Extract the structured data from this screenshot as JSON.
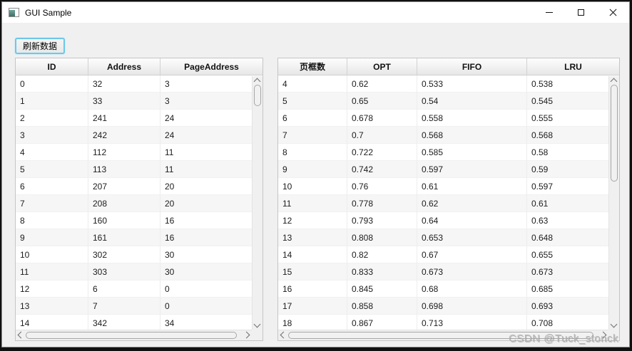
{
  "window": {
    "title": "GUI Sample"
  },
  "toolbar": {
    "refresh_label": "刷新数据"
  },
  "left_table": {
    "columns": [
      "ID",
      "Address",
      "PageAddress"
    ],
    "rows": [
      [
        "0",
        "32",
        "3"
      ],
      [
        "1",
        "33",
        "3"
      ],
      [
        "2",
        "241",
        "24"
      ],
      [
        "3",
        "242",
        "24"
      ],
      [
        "4",
        "112",
        "11"
      ],
      [
        "5",
        "113",
        "11"
      ],
      [
        "6",
        "207",
        "20"
      ],
      [
        "7",
        "208",
        "20"
      ],
      [
        "8",
        "160",
        "16"
      ],
      [
        "9",
        "161",
        "16"
      ],
      [
        "10",
        "302",
        "30"
      ],
      [
        "11",
        "303",
        "30"
      ],
      [
        "12",
        "6",
        "0"
      ],
      [
        "13",
        "7",
        "0"
      ],
      [
        "14",
        "342",
        "34"
      ]
    ]
  },
  "right_table": {
    "columns": [
      "页框数",
      "OPT",
      "FIFO",
      "LRU"
    ],
    "rows": [
      [
        "4",
        "0.62",
        "0.533",
        "0.538"
      ],
      [
        "5",
        "0.65",
        "0.54",
        "0.545"
      ],
      [
        "6",
        "0.678",
        "0.558",
        "0.555"
      ],
      [
        "7",
        "0.7",
        "0.568",
        "0.568"
      ],
      [
        "8",
        "0.722",
        "0.585",
        "0.58"
      ],
      [
        "9",
        "0.742",
        "0.597",
        "0.59"
      ],
      [
        "10",
        "0.76",
        "0.61",
        "0.597"
      ],
      [
        "11",
        "0.778",
        "0.62",
        "0.61"
      ],
      [
        "12",
        "0.793",
        "0.64",
        "0.63"
      ],
      [
        "13",
        "0.808",
        "0.653",
        "0.648"
      ],
      [
        "14",
        "0.82",
        "0.67",
        "0.655"
      ],
      [
        "15",
        "0.833",
        "0.673",
        "0.673"
      ],
      [
        "16",
        "0.845",
        "0.68",
        "0.685"
      ],
      [
        "17",
        "0.858",
        "0.698",
        "0.693"
      ],
      [
        "18",
        "0.867",
        "0.713",
        "0.708"
      ]
    ]
  },
  "watermark": "CSDN @Tuck_stonck",
  "colors": {
    "window_background": "#f0f0f0",
    "titlebar_background": "#ffffff",
    "focus_ring": "#6fc7e8",
    "row_alternate": "#f6f6f6",
    "header_gradient_top": "#fdfdfd",
    "header_gradient_bottom": "#e7e7e7",
    "watermark_text": "#b5b5b5"
  }
}
